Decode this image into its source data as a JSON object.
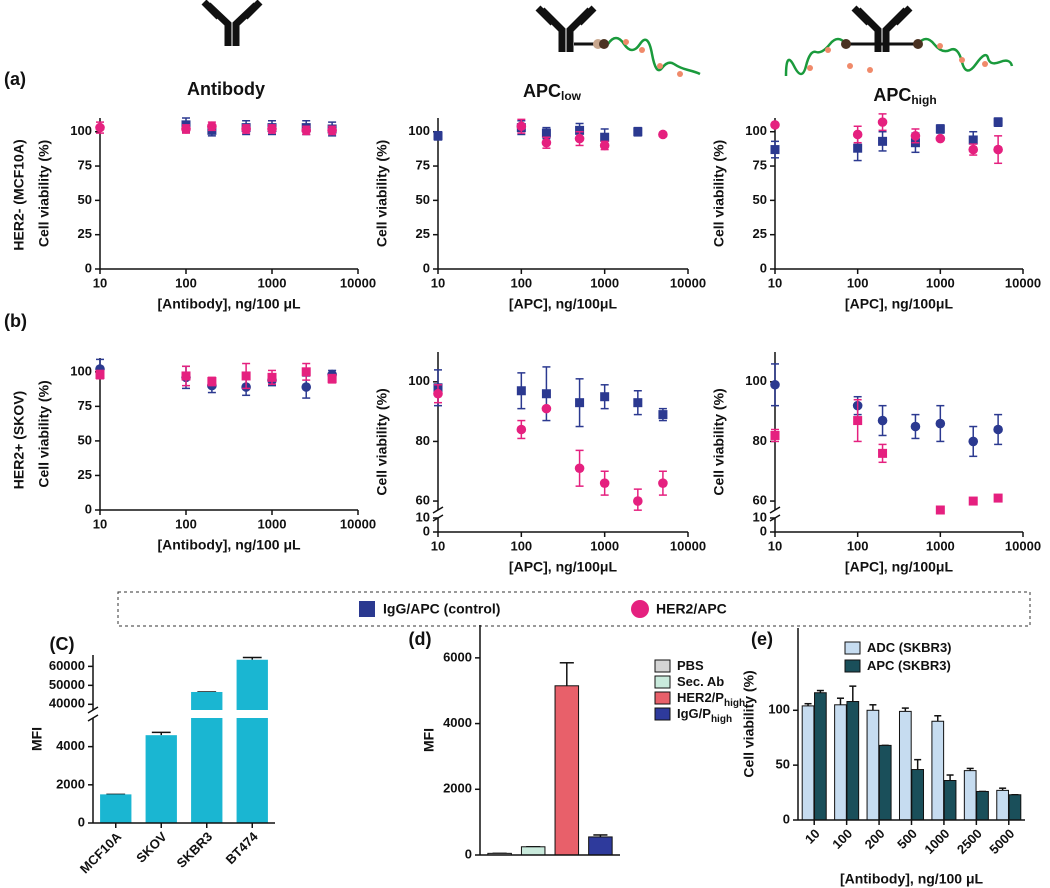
{
  "figure": {
    "headers": [
      {
        "text": "Antibody"
      },
      {
        "text": "APC",
        "subscript": "low"
      },
      {
        "text": "APC",
        "subscript": "high"
      }
    ],
    "rows": [
      {
        "tag": "(a)",
        "label": "HER2- (MCF10A)"
      },
      {
        "tag": "(b)",
        "label": "HER2+ (SKOV)"
      }
    ],
    "legend": [
      {
        "label": "IgG/APC (control)",
        "color": "#2b3990",
        "marker": "square"
      },
      {
        "label": "HER2/APC",
        "color": "#e5207f",
        "marker": "circle"
      }
    ]
  },
  "chart_data": [
    {
      "type": "scatter",
      "x_scale": "log",
      "x": [
        10,
        100,
        200,
        500,
        1000,
        2500,
        5000
      ],
      "xlim": [
        10,
        10000
      ],
      "xticks": [
        10,
        100,
        1000,
        10000
      ],
      "ylim": [
        0,
        110
      ],
      "yticks": [
        0,
        25,
        50,
        75,
        100
      ],
      "xlabel": "[Antibody], ng/100 μL",
      "ylabel": "Cell viability (%)",
      "series": [
        {
          "color": "#2b3990",
          "marker": "square",
          "values": [
            null,
            105,
            101,
            103,
            103,
            103,
            102
          ],
          "errors": [
            null,
            5,
            4,
            5,
            5,
            5,
            5
          ]
        },
        {
          "color": "#e5207f",
          "marker": "circle",
          "values": [
            103,
            102,
            104,
            102,
            102,
            101,
            101
          ],
          "errors": [
            4,
            3,
            3,
            3,
            3,
            3,
            3
          ]
        }
      ]
    },
    {
      "type": "scatter",
      "x_scale": "log",
      "x": [
        10,
        100,
        200,
        500,
        1000,
        2500,
        5000
      ],
      "xlim": [
        10,
        10000
      ],
      "xticks": [
        10,
        100,
        1000,
        10000
      ],
      "ylim": [
        0,
        110
      ],
      "yticks": [
        0,
        25,
        50,
        75,
        100
      ],
      "xlabel": "[APC], ng/100μL",
      "ylabel": "Cell viability (%)",
      "series": [
        {
          "color": "#2b3990",
          "marker": "square",
          "values": [
            97,
            103,
            99,
            101,
            96,
            100,
            null
          ],
          "errors": [
            3,
            5,
            4,
            5,
            6,
            3,
            null
          ]
        },
        {
          "color": "#e5207f",
          "marker": "circle",
          "values": [
            null,
            104,
            92,
            95,
            90,
            null,
            98
          ],
          "errors": [
            null,
            5,
            4,
            5,
            3,
            null,
            0
          ]
        }
      ]
    },
    {
      "type": "scatter",
      "x_scale": "log",
      "x": [
        10,
        100,
        200,
        500,
        1000,
        2500,
        5000
      ],
      "xlim": [
        10,
        10000
      ],
      "xticks": [
        10,
        100,
        1000,
        10000
      ],
      "ylim": [
        0,
        110
      ],
      "yticks": [
        0,
        25,
        50,
        75,
        100
      ],
      "xlabel": "[APC], ng/100μL",
      "ylabel": "Cell viability (%)",
      "series": [
        {
          "color": "#2b3990",
          "marker": "square",
          "values": [
            87,
            88,
            93,
            92,
            102,
            94,
            107
          ],
          "errors": [
            6,
            9,
            7,
            7,
            3,
            6,
            3
          ]
        },
        {
          "color": "#e5207f",
          "marker": "circle",
          "values": [
            105,
            98,
            107,
            97,
            95,
            87,
            87
          ],
          "errors": [
            0,
            6,
            6,
            5,
            0,
            4,
            10
          ]
        }
      ]
    },
    {
      "type": "scatter",
      "x_scale": "log",
      "x": [
        10,
        100,
        200,
        500,
        1000,
        2500,
        5000
      ],
      "xlim": [
        10,
        10000
      ],
      "xticks": [
        10,
        100,
        1000,
        10000
      ],
      "ylim": [
        0,
        110
      ],
      "yticks": [
        0,
        25,
        50,
        75,
        100
      ],
      "xlabel": "[Antibody], ng/100 μL",
      "ylabel": "Cell viability (%)",
      "series": [
        {
          "color": "#2b3990",
          "marker": "circle",
          "values": [
            102,
            96,
            90,
            89,
            94,
            89,
            98
          ],
          "errors": [
            7,
            8,
            5,
            6,
            4,
            8,
            3
          ]
        },
        {
          "color": "#e5207f",
          "marker": "square",
          "values": [
            98,
            97,
            93,
            97,
            96,
            100,
            95
          ],
          "errors": [
            3,
            7,
            3,
            9,
            5,
            6,
            3
          ]
        }
      ]
    },
    {
      "type": "scatter",
      "x_scale": "log",
      "x": [
        10,
        100,
        200,
        500,
        1000,
        2500,
        5000
      ],
      "xlim": [
        10,
        10000
      ],
      "xticks": [
        10,
        100,
        1000,
        10000
      ],
      "ylim": [
        0,
        110
      ],
      "ybreak": [
        10,
        57
      ],
      "yticks": [
        0,
        10,
        60,
        80,
        100
      ],
      "xlabel": "[APC], ng/100μL",
      "ylabel": "Cell viability (%)",
      "series": [
        {
          "color": "#2b3990",
          "marker": "square",
          "values": [
            98,
            97,
            96,
            93,
            95,
            93,
            89
          ],
          "errors": [
            6,
            6,
            9,
            8,
            4,
            4,
            2
          ]
        },
        {
          "color": "#e5207f",
          "marker": "circle",
          "values": [
            96,
            84,
            91,
            71,
            66,
            60,
            66
          ],
          "errors": [
            3,
            3,
            0,
            6,
            4,
            4,
            4
          ]
        }
      ]
    },
    {
      "type": "scatter",
      "x_scale": "log",
      "x": [
        10,
        100,
        200,
        500,
        1000,
        2500,
        5000
      ],
      "xlim": [
        10,
        10000
      ],
      "xticks": [
        10,
        100,
        1000,
        10000
      ],
      "ylim": [
        0,
        110
      ],
      "ybreak": [
        10,
        57
      ],
      "yticks": [
        0,
        10,
        60,
        80,
        100
      ],
      "xlabel": "[APC], ng/100μL",
      "ylabel": "Cell viability (%)",
      "series": [
        {
          "color": "#2b3990",
          "marker": "circle",
          "values": [
            99,
            92,
            87,
            85,
            86,
            80,
            84
          ],
          "errors": [
            7,
            3,
            5,
            4,
            6,
            5,
            5
          ]
        },
        {
          "color": "#e5207f",
          "marker": "square",
          "values": [
            82,
            87,
            76,
            null,
            57,
            60,
            61
          ],
          "errors": [
            2,
            7,
            3,
            null,
            0,
            0,
            0
          ]
        }
      ]
    },
    {
      "type": "bar",
      "panel_label": "(C)",
      "categories": [
        "MCF10A",
        "SKOV",
        "SKBR3",
        "BT474"
      ],
      "values": [
        1500,
        4600,
        46500,
        63500
      ],
      "errors": [
        0,
        150,
        0,
        1200
      ],
      "color": "#1ab6d2",
      "ylim": [
        0,
        66000
      ],
      "ybreak": [
        5500,
        37000
      ],
      "yticks": [
        0,
        2000,
        4000,
        40000,
        50000,
        60000
      ],
      "ylabel": "MFI"
    },
    {
      "type": "bar",
      "panel_label": "(d)",
      "categories": [
        null
      ],
      "ylim": [
        0,
        7000
      ],
      "yticks": [
        0,
        2000,
        4000,
        6000
      ],
      "ylabel": "MFI",
      "series": [
        {
          "name": "PBS",
          "color": "#d4d4d4",
          "values": [
            50
          ],
          "errors": [
            0
          ]
        },
        {
          "name": "Sec. Ab",
          "color": "#c9eadc",
          "values": [
            250
          ],
          "errors": [
            0
          ]
        },
        {
          "name": "HER2/P",
          "name_subscript": "high",
          "color": "#e8606a",
          "values": [
            5150
          ],
          "errors": [
            700
          ]
        },
        {
          "name": "IgG/P",
          "name_subscript": "high",
          "color": "#2e3a9c",
          "values": [
            550
          ],
          "errors": [
            60
          ]
        }
      ]
    },
    {
      "type": "bar",
      "panel_label": "(e)",
      "categories": [
        "10",
        "100",
        "200",
        "500",
        "1000",
        "2500",
        "5000"
      ],
      "ylim": [
        0,
        175
      ],
      "yticks": [
        0,
        50,
        100
      ],
      "xlabel": "[Antibody], ng/100 μL",
      "ylabel": "Cell viability (%)",
      "series": [
        {
          "name": "ADC (SKBR3)",
          "color": "#c6dcf0",
          "values": [
            104,
            105,
            100,
            99,
            90,
            45,
            27
          ],
          "errors": [
            2,
            6,
            5,
            3,
            5,
            2,
            2
          ]
        },
        {
          "name": "APC (SKBR3)",
          "color": "#1a4f5a",
          "values": [
            116,
            108,
            68,
            46,
            36,
            26,
            23
          ],
          "errors": [
            2,
            14,
            0,
            9,
            5,
            0,
            0
          ]
        }
      ]
    }
  ]
}
